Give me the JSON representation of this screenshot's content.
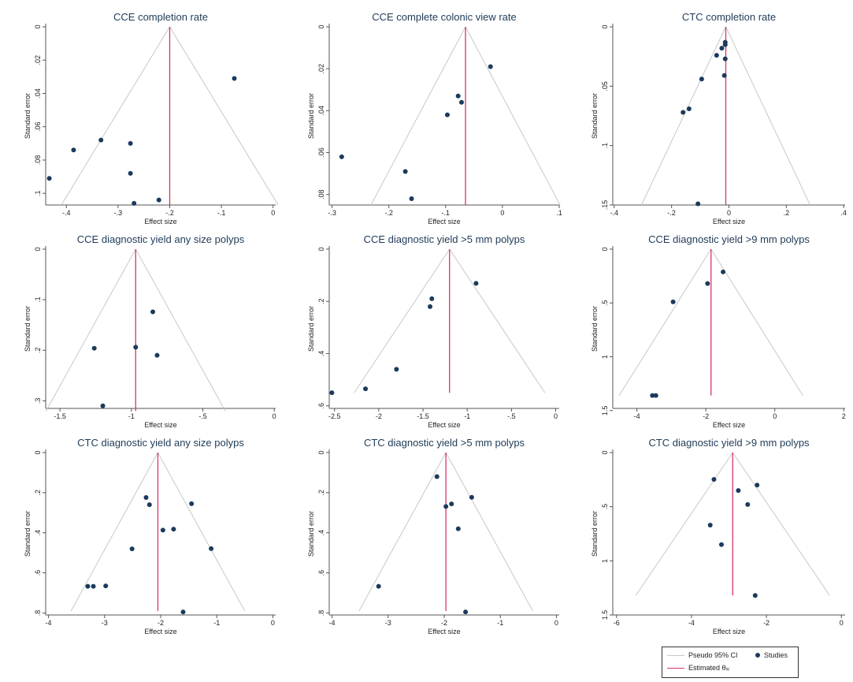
{
  "colors": {
    "ci": "#c8c8c8",
    "estimate": "#d6336c",
    "point": "#1b3a5c",
    "title": "#1f3b57"
  },
  "legend": {
    "ci_label": "Pseudo 95% CI",
    "studies_label": "Studies",
    "estimate_label": "Estimated θᵢᵥ"
  },
  "chart_data": [
    {
      "type": "scatter",
      "title": "CCE completion rate",
      "xlabel": "Effect size",
      "ylabel": "Standard error",
      "xlim": [
        -0.44,
        0.005
      ],
      "ylim": [
        0,
        0.107
      ],
      "xticks": [
        -0.4,
        -0.3,
        -0.2,
        -0.1,
        0
      ],
      "xtick_labels": [
        "-.4",
        "-.3",
        "-.2",
        "-.1",
        "0"
      ],
      "yticks": [
        0,
        0.02,
        0.04,
        0.06,
        0.08,
        0.1
      ],
      "ytick_labels": [
        "0",
        ".02",
        ".04",
        ".06",
        ".08",
        ".1"
      ],
      "estimate": -0.2,
      "funnel_base_se": 0.107,
      "points": [
        [
          -0.075,
          0.031
        ],
        [
          -0.333,
          0.068
        ],
        [
          -0.386,
          0.074
        ],
        [
          -0.276,
          0.07
        ],
        [
          -0.276,
          0.088
        ],
        [
          -0.433,
          0.091
        ],
        [
          -0.221,
          0.104
        ],
        [
          -0.269,
          0.106
        ]
      ]
    },
    {
      "type": "scatter",
      "title": "CCE complete colonic view rate",
      "xlabel": "Effect size",
      "ylabel": "Standard error",
      "xlim": [
        -0.305,
        0.1
      ],
      "ylim": [
        0,
        0.085
      ],
      "xticks": [
        -0.3,
        -0.2,
        -0.1,
        0,
        0.1
      ],
      "xtick_labels": [
        "-.3",
        "-.2",
        "-.1",
        "0",
        ".1"
      ],
      "yticks": [
        0,
        0.02,
        0.04,
        0.06,
        0.08
      ],
      "ytick_labels": [
        "0",
        ".02",
        ".04",
        ".06",
        ".08"
      ],
      "estimate": -0.065,
      "funnel_base_se": 0.085,
      "points": [
        [
          -0.021,
          0.019
        ],
        [
          -0.078,
          0.033
        ],
        [
          -0.072,
          0.036
        ],
        [
          -0.097,
          0.042
        ],
        [
          -0.283,
          0.062
        ],
        [
          -0.171,
          0.069
        ],
        [
          -0.16,
          0.082
        ]
      ]
    },
    {
      "type": "scatter",
      "title": "CTC completion rate",
      "xlabel": "Effect size",
      "ylabel": "Standard error",
      "xlim": [
        -0.405,
        0.405
      ],
      "ylim": [
        0,
        0.15
      ],
      "xticks": [
        -0.4,
        -0.2,
        0,
        0.2,
        0.4
      ],
      "xtick_labels": [
        "-.4",
        "-.2",
        "0",
        ".2",
        ".4"
      ],
      "yticks": [
        0,
        0.05,
        0.1,
        0.15
      ],
      "ytick_labels": [
        "0",
        ".05",
        ".1",
        ".15"
      ],
      "estimate": -0.011,
      "funnel_base_se": 0.15,
      "points": [
        [
          -0.013,
          0.013
        ],
        [
          -0.013,
          0.015
        ],
        [
          -0.025,
          0.018
        ],
        [
          -0.043,
          0.024
        ],
        [
          -0.013,
          0.027
        ],
        [
          -0.016,
          0.041
        ],
        [
          -0.095,
          0.044
        ],
        [
          -0.139,
          0.069
        ],
        [
          -0.16,
          0.072
        ],
        [
          -0.108,
          0.149
        ]
      ]
    },
    {
      "type": "scatter",
      "title": "CCE diagnostic yield any size polyps",
      "xlabel": "Effect size",
      "ylabel": "Standard error",
      "xlim": [
        -1.6,
        0.01
      ],
      "ylim": [
        0,
        0.315
      ],
      "xticks": [
        -1.5,
        -1,
        -0.5,
        0
      ],
      "xtick_labels": [
        "-1.5",
        "-1",
        "-.5",
        "0"
      ],
      "yticks": [
        0,
        0.1,
        0.2,
        0.3
      ],
      "ytick_labels": [
        "0",
        ".1",
        ".2",
        ".3"
      ],
      "estimate": -0.97,
      "funnel_base_se": 0.32,
      "points": [
        [
          -0.85,
          0.124
        ],
        [
          -0.97,
          0.194
        ],
        [
          -1.26,
          0.196
        ],
        [
          -0.82,
          0.21
        ],
        [
          -1.2,
          0.31
        ]
      ]
    },
    {
      "type": "scatter",
      "title": "CCE diagnostic yield >5 mm polyps",
      "xlabel": "Effect size",
      "ylabel": "Standard error",
      "xlim": [
        -2.56,
        0.04
      ],
      "ylim": [
        0,
        0.61
      ],
      "xticks": [
        -2.5,
        -2,
        -1.5,
        -1,
        -0.5,
        0
      ],
      "xtick_labels": [
        "-2.5",
        "-2",
        "-1.5",
        "-1",
        "-.5",
        "0"
      ],
      "yticks": [
        0,
        0.2,
        0.4,
        0.6
      ],
      "ytick_labels": [
        "0",
        ".2",
        ".4",
        ".6"
      ],
      "estimate": -1.2,
      "funnel_base_se": 0.55,
      "points": [
        [
          -0.9,
          0.131
        ],
        [
          -1.4,
          0.19
        ],
        [
          -1.42,
          0.22
        ],
        [
          -1.8,
          0.46
        ],
        [
          -2.15,
          0.535
        ],
        [
          -2.53,
          0.55
        ]
      ]
    },
    {
      "type": "scatter",
      "title": "CCE diagnostic yield >9 mm polyps",
      "xlabel": "Effect size",
      "ylabel": "Standard error",
      "xlim": [
        -4.7,
        2.04
      ],
      "ylim": [
        0,
        1.48
      ],
      "xticks": [
        -4,
        -2,
        0,
        2
      ],
      "xtick_labels": [
        "-4",
        "-2",
        "0",
        "2"
      ],
      "yticks": [
        0,
        0.5,
        1,
        1.5
      ],
      "ytick_labels": [
        "0",
        ".5",
        "1",
        "1.5"
      ],
      "estimate": -1.85,
      "funnel_base_se": 1.36,
      "points": [
        [
          -1.5,
          0.212
        ],
        [
          -1.95,
          0.32
        ],
        [
          -2.95,
          0.49
        ],
        [
          -3.45,
          1.36
        ],
        [
          -3.55,
          1.36
        ]
      ]
    },
    {
      "type": "scatter",
      "title": "CTC diagnostic yield any size polyps",
      "xlabel": "Effect size",
      "ylabel": "Standard error",
      "xlim": [
        -4.05,
        0.05
      ],
      "ylim": [
        0,
        0.81
      ],
      "xticks": [
        -4,
        -3,
        -2,
        -1,
        0
      ],
      "xtick_labels": [
        "-4",
        "-3",
        "-2",
        "-1",
        "0"
      ],
      "yticks": [
        0,
        0.2,
        0.4,
        0.6,
        0.8
      ],
      "ytick_labels": [
        "0",
        ".2",
        ".4",
        ".6",
        ".8"
      ],
      "estimate": -2.05,
      "funnel_base_se": 0.79,
      "points": [
        [
          -2.26,
          0.224
        ],
        [
          -2.2,
          0.26
        ],
        [
          -1.45,
          0.255
        ],
        [
          -1.96,
          0.387
        ],
        [
          -1.77,
          0.382
        ],
        [
          -2.51,
          0.48
        ],
        [
          -1.1,
          0.479
        ],
        [
          -3.3,
          0.667
        ],
        [
          -3.2,
          0.667
        ],
        [
          -2.98,
          0.665
        ],
        [
          -1.6,
          0.795
        ]
      ]
    },
    {
      "type": "scatter",
      "title": "CTC diagnostic yield >5 mm polyps",
      "xlabel": "Effect size",
      "ylabel": "Standard error",
      "xlim": [
        -4.05,
        0.05
      ],
      "ylim": [
        0,
        0.81
      ],
      "xticks": [
        -4,
        -3,
        -2,
        -1,
        0
      ],
      "xtick_labels": [
        "-4",
        "-3",
        "-2",
        "-1",
        "0"
      ],
      "yticks": [
        0,
        0.2,
        0.4,
        0.6,
        0.8
      ],
      "ytick_labels": [
        "0",
        ".2",
        ".4",
        ".6",
        ".8"
      ],
      "estimate": -1.97,
      "funnel_base_se": 0.79,
      "points": [
        [
          -2.13,
          0.12
        ],
        [
          -1.51,
          0.223
        ],
        [
          -1.87,
          0.256
        ],
        [
          -1.97,
          0.269
        ],
        [
          -1.75,
          0.38
        ],
        [
          -3.17,
          0.667
        ],
        [
          -1.62,
          0.795
        ]
      ]
    },
    {
      "type": "scatter",
      "title": "CTC diagnostic yield >9 mm polyps",
      "xlabel": "Effect size",
      "ylabel": "Standard error",
      "xlim": [
        -6.1,
        0.1
      ],
      "ylim": [
        0,
        1.5
      ],
      "xticks": [
        -6,
        -4,
        -2,
        0
      ],
      "xtick_labels": [
        "-6",
        "-4",
        "-2",
        "0"
      ],
      "yticks": [
        0,
        0.5,
        1,
        1.5
      ],
      "ytick_labels": [
        "0",
        ".5",
        "1",
        "1.5"
      ],
      "estimate": -2.9,
      "funnel_base_se": 1.32,
      "points": [
        [
          -3.4,
          0.248
        ],
        [
          -2.25,
          0.3
        ],
        [
          -2.75,
          0.35
        ],
        [
          -2.5,
          0.48
        ],
        [
          -3.5,
          0.67
        ],
        [
          -3.2,
          0.85
        ],
        [
          -2.3,
          1.32
        ]
      ]
    }
  ]
}
